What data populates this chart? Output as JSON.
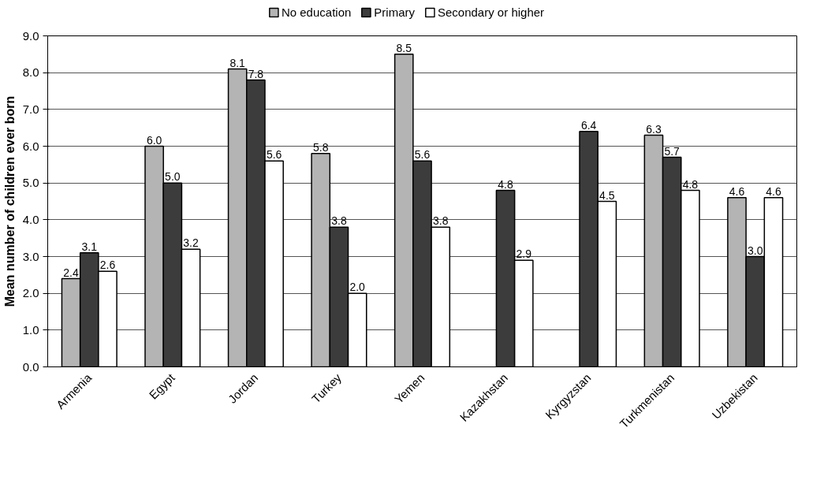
{
  "chart_data": {
    "type": "bar",
    "ylabel": "Mean number of children ever born",
    "categories": [
      "Armenia",
      "Egypt",
      "Jordan",
      "Turkey",
      "Yemen",
      "Kazakhstan",
      "Kyrgyzstan",
      "Turkmenistan",
      "Uzbekistan"
    ],
    "series": [
      {
        "name": "No education",
        "color": "#b4b4b4",
        "values": [
          2.4,
          6.0,
          8.1,
          5.8,
          8.5,
          null,
          null,
          6.3,
          4.6
        ],
        "value_labels": [
          "2.4",
          "6.0",
          "8.1",
          "5.8",
          "8.5",
          null,
          null,
          "6.3",
          "4.6"
        ]
      },
      {
        "name": "Primary",
        "color": "#3c3c3c",
        "values": [
          3.1,
          5.0,
          7.8,
          3.8,
          5.6,
          4.8,
          6.4,
          5.7,
          3.0
        ],
        "value_labels": [
          "3.1",
          "5.0",
          "7.8",
          "3.8",
          "5.6",
          "4.8",
          "6.4",
          "5.7",
          "3.0"
        ]
      },
      {
        "name": "Secondary or higher",
        "color": "#ffffff",
        "values": [
          2.6,
          3.2,
          5.6,
          2.0,
          3.8,
          2.9,
          4.5,
          4.8,
          4.6
        ],
        "value_labels": [
          "2.6",
          "3.2",
          "5.6",
          "2.0",
          "3.8",
          "2.9",
          "4.5",
          "4.8",
          "4.6"
        ]
      }
    ],
    "ylim": [
      0,
      9
    ],
    "yticks": [
      {
        "value": 0,
        "label": "0.0"
      },
      {
        "value": 1,
        "label": "1.0"
      },
      {
        "value": 2,
        "label": "2.0"
      },
      {
        "value": 3,
        "label": "3.0"
      },
      {
        "value": 4,
        "label": "4.0"
      },
      {
        "value": 5,
        "label": "5.0"
      },
      {
        "value": 6,
        "label": "6.0"
      },
      {
        "value": 7,
        "label": "7.0"
      },
      {
        "value": 8,
        "label": "8.0"
      },
      {
        "value": 9,
        "label": "9.0"
      }
    ],
    "grid": "y",
    "legend": "top"
  }
}
